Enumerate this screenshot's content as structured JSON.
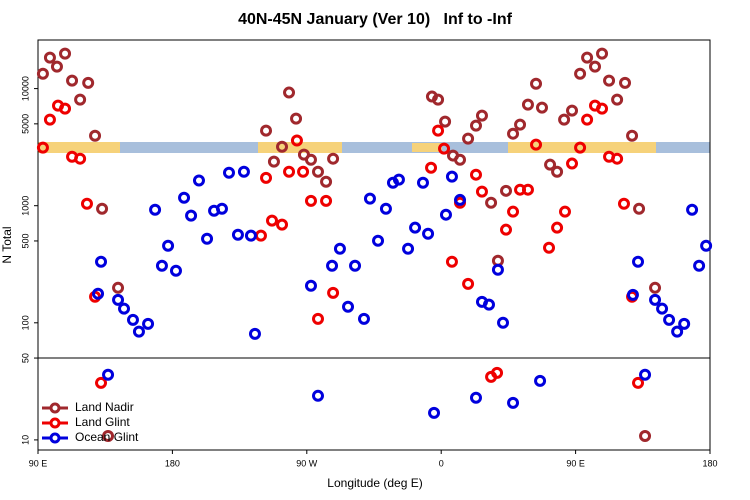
{
  "chart_data": {
    "type": "scatter",
    "title": "40N-45N January (Ver 10)   Inf to -Inf",
    "x_label": "Longitude (deg E)",
    "y_label": "N Total",
    "log_y": true,
    "legend": "bottom-left",
    "ref_line": 50,
    "xlim": [
      90,
      540
    ],
    "ylim": [
      8.2,
      26000
    ],
    "xticks": [
      {
        "value": 90,
        "label": "90 E"
      },
      {
        "value": 180,
        "label": "180"
      },
      {
        "value": 270,
        "label": "90 W"
      },
      {
        "value": 360,
        "label": "0"
      },
      {
        "value": 450,
        "label": "90 E"
      },
      {
        "value": 540,
        "label": "180"
      }
    ],
    "yticks": [
      10,
      50,
      100,
      500,
      1000,
      5000,
      10000
    ],
    "series": [
      {
        "name": "Land Nadir",
        "color": "#a0282d",
        "x": [
          93.3,
          98.0,
          102.7,
          108.1,
          112.8,
          118.2,
          123.6,
          128.2,
          132.9,
          143.6,
          136.9,
          242.7,
          248.0,
          253.4,
          258.1,
          262.8,
          268.1,
          272.8,
          277.5,
          282.9,
          287.6,
          353.8,
          357.9,
          362.6,
          367.9,
          372.6,
          378.0,
          383.3,
          387.3,
          393.4,
          398.0,
          403.4,
          408.1,
          412.8,
          418.1,
          423.5,
          427.5,
          432.9,
          437.6,
          442.3,
          447.6,
          453.0,
          457.7,
          463.0,
          467.7,
          472.4,
          477.8,
          483.1,
          487.8,
          492.5,
          503.2,
          496.5
        ],
        "values": [
          13400,
          18400,
          15400,
          19900,
          11700,
          8050,
          11200,
          3960,
          942,
          199,
          10.8,
          4380,
          2380,
          3190,
          9250,
          5540,
          2730,
          2470,
          1950,
          1600,
          2520,
          8550,
          8050,
          5220,
          2680,
          2470,
          3740,
          4830,
          5880,
          1060,
          339,
          1340,
          4120,
          4920,
          7300,
          11000,
          6880,
          2240,
          1950,
          5430,
          6490,
          13400,
          18400,
          15400,
          19900,
          11700,
          8050,
          11200,
          3960,
          942,
          199,
          10.8
        ]
      },
      {
        "name": "Land Glint",
        "color": "#ee0000",
        "x": [
          93.3,
          98.0,
          103.4,
          108.1,
          112.8,
          118.2,
          122.8,
          128.2,
          132.2,
          239.3,
          242.7,
          246.7,
          253.4,
          258.1,
          263.4,
          267.5,
          272.8,
          277.5,
          282.9,
          287.6,
          353.2,
          357.9,
          361.9,
          367.2,
          372.6,
          378.0,
          383.3,
          387.3,
          393.4,
          397.4,
          403.4,
          408.1,
          412.8,
          418.1,
          423.5,
          432.2,
          437.6,
          442.9,
          447.6,
          453.0,
          457.7,
          463.0,
          467.7,
          472.4,
          477.8,
          482.4,
          487.8,
          491.8
        ],
        "values": [
          3130,
          5430,
          7160,
          6750,
          2620,
          2520,
          1040,
          167,
          30.7,
          555,
          1730,
          745,
          689,
          1950,
          3600,
          1950,
          1100,
          108,
          1100,
          180,
          2110,
          4380,
          3070,
          332,
          1060,
          215,
          1840,
          1320,
          34.5,
          37.4,
          624,
          889,
          1370,
          1370,
          3320,
          437,
          649,
          889,
          2290,
          3130,
          5430,
          7160,
          6750,
          2620,
          2520,
          1040,
          167,
          30.7
        ]
      },
      {
        "name": "Ocean Glint",
        "color": "#0000dd",
        "x": [
          132.2,
          130.2,
          136.9,
          143.6,
          147.6,
          153.6,
          163.7,
          157.6,
          168.4,
          173.0,
          177.1,
          182.4,
          187.8,
          192.5,
          197.8,
          203.2,
          207.9,
          213.2,
          217.9,
          223.9,
          227.9,
          232.6,
          235.3,
          272.8,
          277.5,
          286.9,
          292.2,
          297.6,
          302.3,
          308.3,
          312.3,
          317.7,
          323.0,
          327.7,
          331.7,
          337.8,
          342.5,
          347.8,
          351.2,
          355.2,
          363.2,
          367.2,
          372.6,
          383.3,
          387.3,
          392.0,
          398.0,
          401.4,
          408.1,
          426.2,
          488.4,
          491.8,
          496.5,
          503.2,
          507.9,
          512.6,
          518.0,
          522.7,
          528.0,
          532.7,
          537.4
        ],
        "values": [
          332,
          177,
          36,
          157,
          132,
          106,
          98,
          84,
          924,
          307,
          455,
          278,
          1170,
          822,
          1640,
          522,
          906,
          942,
          1910,
          565,
          1950,
          555,
          80.5,
          207,
          23.8,
          307,
          429,
          137,
          307,
          108,
          1150,
          502,
          942,
          1570,
          1670,
          429,
          649,
          1570,
          576,
          17,
          838,
          1770,
          1120,
          22.9,
          151,
          143,
          284,
          100,
          20.7,
          31.9,
          173,
          332,
          36,
          157,
          132,
          106,
          84,
          98,
          924,
          307,
          455
        ]
      }
    ]
  }
}
